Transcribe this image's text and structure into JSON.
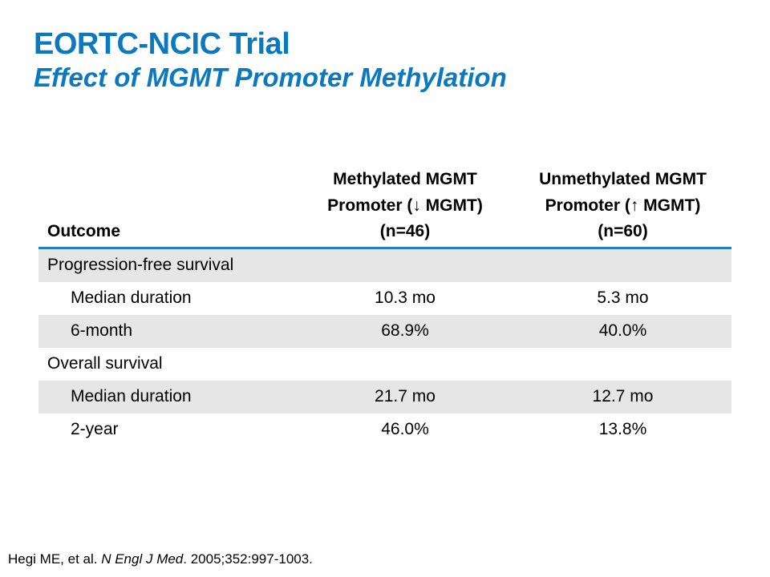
{
  "slide": {
    "title": "EORTC-NCIC Trial",
    "subtitle": "Effect of MGMT Promoter Methylation"
  },
  "table": {
    "headers": {
      "outcome": "Outcome",
      "methylated": [
        "Methylated MGMT",
        "Promoter (↓ MGMT)",
        "(n=46)"
      ],
      "unmethylated": [
        "Unmethylated MGMT",
        "Promoter (↑ MGMT)",
        "(n=60)"
      ]
    },
    "rows": [
      {
        "label": "Progression-free survival",
        "methylated": "",
        "unmethylated": ""
      },
      {
        "label": "Median duration",
        "methylated": "10.3 mo",
        "unmethylated": "5.3 mo"
      },
      {
        "label": "6-month",
        "methylated": "68.9%",
        "unmethylated": "40.0%"
      },
      {
        "label": "Overall survival",
        "methylated": "",
        "unmethylated": ""
      },
      {
        "label": "Median duration",
        "methylated": "21.7 mo",
        "unmethylated": "12.7 mo"
      },
      {
        "label": "2-year",
        "methylated": "46.0%",
        "unmethylated": "13.8%"
      }
    ]
  },
  "citation": {
    "authors": "Hegi ME, et al. ",
    "journal": "N Engl J Med",
    "details": ". 2005;352:997-1003."
  }
}
